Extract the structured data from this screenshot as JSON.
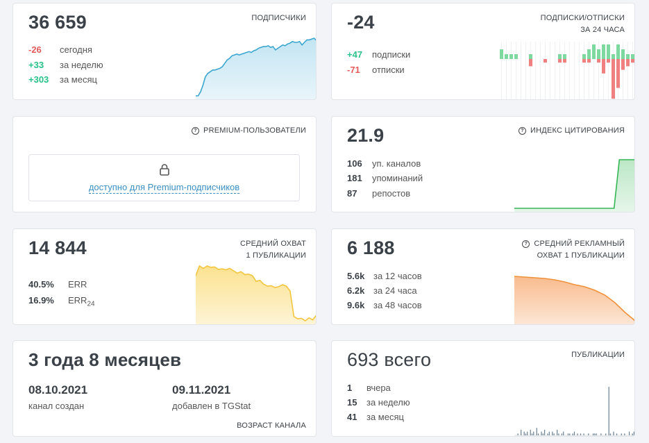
{
  "subscribers": {
    "label": "ПОДПИСЧИКИ",
    "value": "36 659",
    "rows": [
      {
        "value": "-26",
        "text": "сегодня"
      },
      {
        "value": "+33",
        "text": "за неделю"
      },
      {
        "value": "+303",
        "text": "за месяц"
      }
    ]
  },
  "subs_unsubs": {
    "label_line1": "ПОДПИСКИ/ОТПИСКИ",
    "label_line2": "ЗА 24 ЧАСА",
    "value": "-24",
    "rows": [
      {
        "value": "+47",
        "text": "подписки"
      },
      {
        "value": "-71",
        "text": "отписки"
      }
    ]
  },
  "premium": {
    "label": "PREMIUM-ПОЛЬЗОВАТЕЛИ",
    "link": "доступно для Premium-подписчиков"
  },
  "citation": {
    "label": "ИНДЕКС ЦИТИРОВАНИЯ",
    "value": "21.9",
    "rows": [
      {
        "value": "106",
        "text": "уп. каналов"
      },
      {
        "value": "181",
        "text": "упоминаний"
      },
      {
        "value": "87",
        "text": "репостов"
      }
    ]
  },
  "reach": {
    "label_line1": "СРЕДНИЙ ОХВАТ",
    "label_line2": "1 ПУБЛИКАЦИИ",
    "value": "14 844",
    "rows": [
      {
        "value": "40.5%",
        "text": "ERR"
      },
      {
        "value": "16.9%",
        "text": "ERR",
        "sub": "24"
      }
    ]
  },
  "ad_reach": {
    "label_line1": "СРЕДНИЙ РЕКЛАМНЫЙ",
    "label_line2": "ОХВАТ 1 ПУБЛИКАЦИИ",
    "value": "6 188",
    "rows": [
      {
        "value": "5.6k",
        "text": "за 12 часов"
      },
      {
        "value": "6.2k",
        "text": "за 24 часа"
      },
      {
        "value": "9.6k",
        "text": "за 48 часов"
      }
    ]
  },
  "age": {
    "value": "3 года 8 месяцев",
    "created_date": "08.10.2021",
    "created_text": "канал создан",
    "added_date": "09.11.2021",
    "added_text": "добавлен в TGStat",
    "label": "ВОЗРАСТ КАНАЛА"
  },
  "posts": {
    "label": "ПУБЛИКАЦИИ",
    "value": "693 всего",
    "rows": [
      {
        "value": "1",
        "text": "вчера"
      },
      {
        "value": "15",
        "text": "за неделю"
      },
      {
        "value": "41",
        "text": "за месяц"
      }
    ]
  },
  "colors": {
    "subscribers": "#3aa6cf",
    "subscribers_fill": "#bfe3f2",
    "positive": "#28c28a",
    "negative": "#e45a5a",
    "citation": "#35b655",
    "reach": "#f2c53d",
    "ad_reach": "#f0913a",
    "posts": "#6f8595"
  },
  "chart_data": [
    {
      "type": "area",
      "name": "subscribers",
      "values": [
        36356,
        36356,
        36380,
        36420,
        36470,
        36490,
        36500,
        36510,
        36510,
        36515,
        36520,
        36530,
        36550,
        36570,
        36580,
        36595,
        36600,
        36605,
        36600,
        36605,
        36610,
        36615,
        36620,
        36615,
        36625,
        36630,
        36640,
        36645,
        36650,
        36650,
        36655,
        36645,
        36650,
        36630,
        36640,
        36650,
        36660,
        36655,
        36665,
        36670,
        36680,
        36675,
        36675,
        36680,
        36660,
        36675,
        36690,
        36690,
        36695,
        36700,
        36685
      ]
    },
    {
      "type": "bar",
      "name": "subs_unsubs",
      "gains": [
        2,
        1,
        1,
        1,
        0,
        0,
        1,
        0,
        0,
        0,
        0,
        0,
        1,
        1,
        0,
        0,
        0,
        1,
        2,
        3,
        2,
        3,
        3,
        1,
        3,
        2,
        1,
        1
      ],
      "losses": [
        0,
        0,
        0,
        0,
        0,
        0,
        -2,
        0,
        0,
        -1,
        0,
        0,
        -1,
        -1,
        0,
        0,
        0,
        -1,
        -1,
        0,
        -1,
        -4,
        -1,
        -11,
        -8,
        -3,
        -2,
        -1
      ]
    },
    {
      "type": "area",
      "name": "citation",
      "values": [
        1.0,
        1.0,
        1.0,
        1.0,
        1.0,
        1.0,
        1.0,
        1.0,
        1.0,
        1.0,
        1.0,
        1.0,
        1.0,
        1.0,
        1.0,
        1.0,
        1.0,
        1.0,
        1.0,
        1.0,
        21.9,
        21.9,
        21.9,
        21.9
      ]
    },
    {
      "type": "area",
      "name": "reach",
      "values": [
        14,
        16,
        15.5,
        16,
        15.7,
        15.8,
        15.3,
        15.4,
        15.2,
        15.5,
        15,
        14.5,
        14.8,
        14.2,
        14.3,
        14,
        12.8,
        13,
        12.2,
        11.8,
        11.9,
        11.5,
        11.7,
        12.1,
        11.8,
        10.8,
        5.5,
        5,
        5.1,
        4.6,
        5.2,
        4.8,
        5.8
      ]
    },
    {
      "type": "area",
      "name": "ad_reach",
      "values": [
        9.8,
        9.7,
        9.6,
        9.5,
        9.3,
        9.0,
        8.6,
        8.3,
        7.8,
        7.1,
        6.0,
        4.6,
        3.4
      ]
    },
    {
      "type": "bar",
      "name": "posts",
      "values": [
        0,
        0,
        1,
        0,
        3,
        0,
        2,
        1,
        2,
        0,
        3,
        1,
        2,
        0,
        4,
        1,
        0,
        2,
        1,
        3,
        0,
        1,
        2,
        0,
        2,
        1,
        0,
        3,
        1,
        0,
        1,
        2,
        0,
        0,
        1,
        1,
        0,
        1,
        2,
        0,
        1,
        0,
        1,
        0,
        1,
        0,
        0,
        1,
        0,
        0,
        1,
        1,
        1,
        0,
        0,
        1,
        0,
        0,
        1,
        0,
        26,
        1,
        0,
        2,
        0,
        1,
        0,
        0,
        1,
        0,
        1,
        0,
        0,
        2,
        0,
        1,
        2
      ]
    }
  ]
}
